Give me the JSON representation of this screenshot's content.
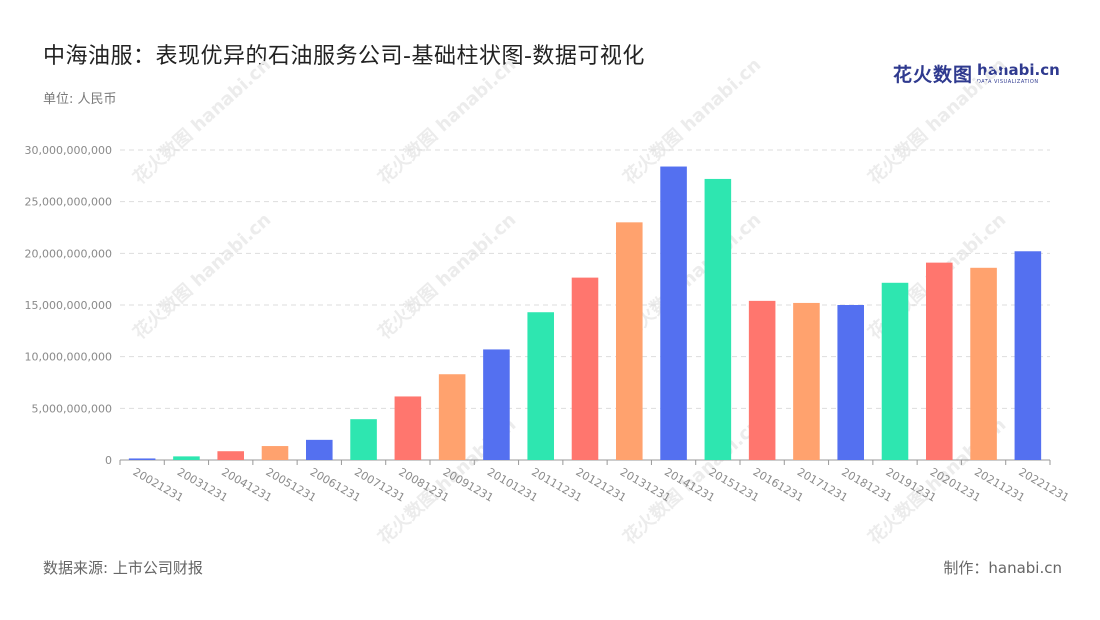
{
  "header": {
    "title": "中海油服：表现优异的石油服务公司-基础柱状图-数据可视化",
    "unit": "单位: 人民币"
  },
  "logo": {
    "cn": "花火数图",
    "en": "hanabi.cn",
    "sub": "DATA VISUALIZATION"
  },
  "footer": {
    "source": "数据来源: 上市公司财报",
    "maker": "制作：hanabi.cn"
  },
  "watermark": "花火数图 hanabi.cn",
  "colors": {
    "palette": [
      "#5470f0",
      "#2ee6b0",
      "#ff766e",
      "#ffa26e"
    ],
    "grid": "#dddddd",
    "axis": "#999999",
    "tick_text": "#8a8a8a"
  },
  "chart_data": {
    "type": "bar",
    "title": "中海油服：表现优异的石油服务公司-基础柱状图-数据可视化",
    "xlabel": "",
    "ylabel": "",
    "ylim": [
      0,
      30000000000
    ],
    "yticks": [
      0,
      5000000000,
      10000000000,
      15000000000,
      20000000000,
      25000000000,
      30000000000
    ],
    "ytick_labels": [
      "0",
      "5,000,000,000",
      "10,000,000,000",
      "15,000,000,000",
      "20,000,000,000",
      "25,000,000,000",
      "30,000,000,000"
    ],
    "grid": true,
    "categories": [
      "20021231",
      "20031231",
      "20041231",
      "20051231",
      "20061231",
      "20071231",
      "20081231",
      "20091231",
      "20101231",
      "20111231",
      "20121231",
      "20131231",
      "20141231",
      "20151231",
      "20161231",
      "20171231",
      "20181231",
      "20191231",
      "20201231",
      "20211231",
      "20221231"
    ],
    "values": [
      150000000,
      350000000,
      850000000,
      1350000000,
      1950000000,
      3950000000,
      6150000000,
      8300000000,
      10700000000,
      14300000000,
      17650000000,
      23000000000,
      28400000000,
      27200000000,
      15400000000,
      15200000000,
      15000000000,
      17150000000,
      19100000000,
      18600000000,
      20200000000
    ]
  }
}
